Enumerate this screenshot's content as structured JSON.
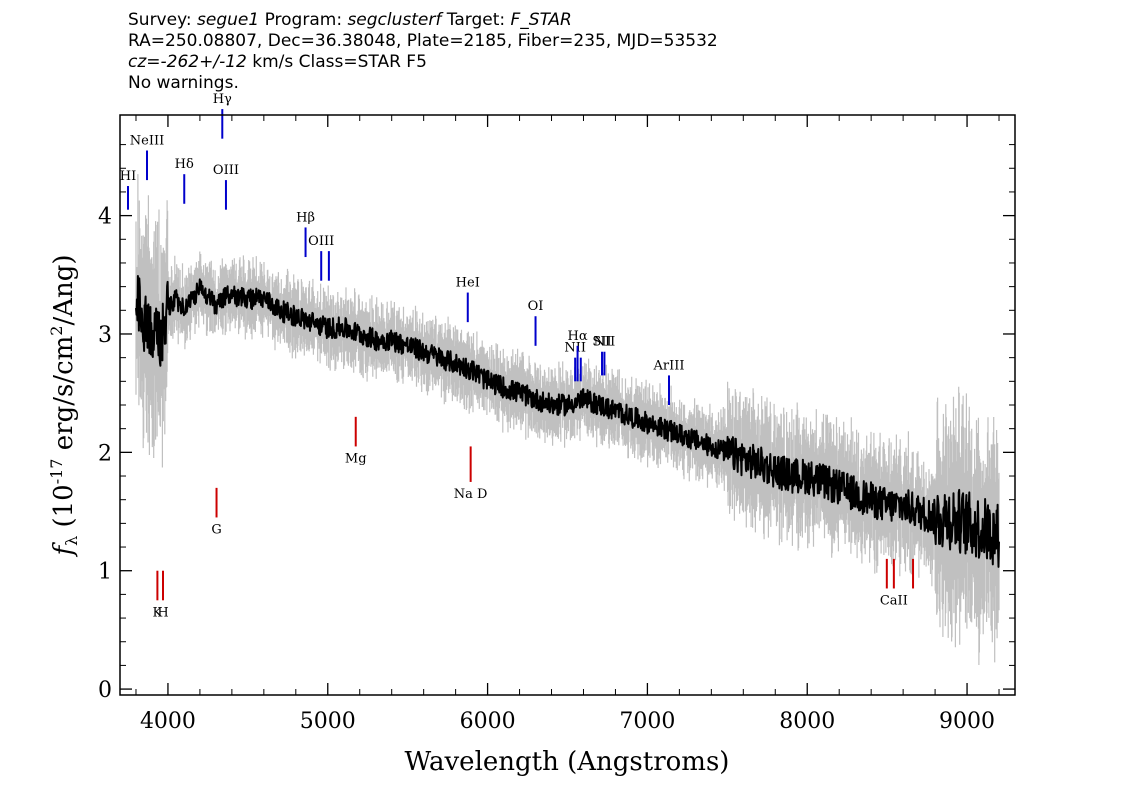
{
  "header": {
    "line1": {
      "survey_label": "Survey: ",
      "survey": "segue1",
      "program_label": " Program: ",
      "program": "segclusterf",
      "target_label": " Target: ",
      "target": "F_STAR"
    },
    "line2": "RA=250.08807, Dec=36.38048, Plate=2185, Fiber=235, MJD=53532",
    "line3": {
      "cz": "cz=-262+/-12",
      "rest": " km/s Class=STAR F5"
    },
    "line4": "No warnings."
  },
  "chart_data": {
    "type": "line",
    "xlabel": "Wavelength (Angstroms)",
    "ylabel_parts": [
      "f",
      "λ",
      " (10",
      "-17",
      " erg/s/cm",
      "2",
      "/Ang)"
    ],
    "xlim": [
      3700,
      9300
    ],
    "ylim": [
      -0.05,
      4.85
    ],
    "x_ticks": [
      4000,
      5000,
      6000,
      7000,
      8000,
      9000
    ],
    "y_ticks": [
      0,
      1,
      2,
      3,
      4
    ],
    "colors": {
      "spectrum": "#000000",
      "error_band": "#c0c0c0",
      "emission": "#0000cc",
      "absorption": "#cc0000"
    },
    "series": [
      {
        "role": "flux",
        "x": [
          3800,
          3850,
          3900,
          3950,
          4000,
          4050,
          4100,
          4150,
          4200,
          4250,
          4300,
          4350,
          4400,
          4450,
          4500,
          4600,
          4700,
          4800,
          4900,
          5000,
          5100,
          5200,
          5300,
          5400,
          5500,
          5600,
          5700,
          5800,
          5900,
          6000,
          6100,
          6200,
          6300,
          6400,
          6500,
          6600,
          6700,
          6800,
          6900,
          7000,
          7100,
          7200,
          7300,
          7400,
          7500,
          7600,
          7700,
          7800,
          7900,
          8000,
          8100,
          8200,
          8300,
          8400,
          8500,
          8600,
          8700,
          8800,
          8900,
          9000,
          9100,
          9200
        ],
        "y": [
          3.3,
          3.1,
          3.0,
          2.9,
          3.2,
          3.3,
          3.2,
          3.3,
          3.4,
          3.3,
          3.25,
          3.3,
          3.35,
          3.3,
          3.3,
          3.3,
          3.2,
          3.15,
          3.1,
          3.05,
          3.05,
          3.0,
          2.95,
          2.95,
          2.9,
          2.85,
          2.8,
          2.75,
          2.7,
          2.6,
          2.55,
          2.5,
          2.45,
          2.4,
          2.4,
          2.45,
          2.4,
          2.35,
          2.3,
          2.25,
          2.2,
          2.15,
          2.1,
          2.05,
          2.0,
          1.95,
          1.9,
          1.85,
          1.8,
          1.8,
          1.75,
          1.7,
          1.65,
          1.6,
          1.55,
          1.55,
          1.5,
          1.45,
          1.45,
          1.4,
          1.35,
          1.3
        ]
      }
    ],
    "spectral_features": [
      {
        "x": 3750,
        "y1": 4.05,
        "y2": 4.25,
        "label": "HI",
        "kind": "emission"
      },
      {
        "x": 3869,
        "y1": 4.3,
        "y2": 4.55,
        "label": "NeIII",
        "kind": "emission"
      },
      {
        "x": 4102,
        "y1": 4.1,
        "y2": 4.35,
        "label": "Hδ",
        "kind": "emission"
      },
      {
        "x": 4340,
        "y1": 4.65,
        "y2": 4.9,
        "label": "Hγ",
        "kind": "emission"
      },
      {
        "x": 4363,
        "y1": 4.05,
        "y2": 4.3,
        "label": "OIII",
        "kind": "emission"
      },
      {
        "x": 4861,
        "y1": 3.65,
        "y2": 3.9,
        "label": "Hβ",
        "kind": "emission"
      },
      {
        "x": 4959,
        "y1": 3.45,
        "y2": 3.7,
        "label": "OIII",
        "kind": "emission"
      },
      {
        "x": 5007,
        "y1": 3.45,
        "y2": 3.7,
        "label": "",
        "kind": "emission"
      },
      {
        "x": 5876,
        "y1": 3.1,
        "y2": 3.35,
        "label": "HeI",
        "kind": "emission"
      },
      {
        "x": 6300,
        "y1": 2.9,
        "y2": 3.15,
        "label": "OI",
        "kind": "emission"
      },
      {
        "x": 6548,
        "y1": 2.6,
        "y2": 2.8,
        "label": "NII",
        "kind": "emission"
      },
      {
        "x": 6563,
        "y1": 2.6,
        "y2": 2.9,
        "label": "Hα",
        "kind": "emission"
      },
      {
        "x": 6583,
        "y1": 2.6,
        "y2": 2.8,
        "label": "",
        "kind": "emission"
      },
      {
        "x": 6716,
        "y1": 2.65,
        "y2": 2.85,
        "label": "SII",
        "kind": "emission"
      },
      {
        "x": 6731,
        "y1": 2.65,
        "y2": 2.85,
        "label": "NII",
        "kind": "emission"
      },
      {
        "x": 7135,
        "y1": 2.4,
        "y2": 2.65,
        "label": "ArIII",
        "kind": "emission"
      },
      {
        "x": 3934,
        "y1": 0.75,
        "y2": 1.0,
        "label": "K",
        "kind": "absorption"
      },
      {
        "x": 3969,
        "y1": 0.75,
        "y2": 1.0,
        "label": "H",
        "kind": "absorption"
      },
      {
        "x": 4304,
        "y1": 1.45,
        "y2": 1.7,
        "label": "G",
        "kind": "absorption"
      },
      {
        "x": 5175,
        "y1": 2.05,
        "y2": 2.3,
        "label": "Mg",
        "kind": "absorption"
      },
      {
        "x": 5894,
        "y1": 1.75,
        "y2": 2.05,
        "label": "Na D",
        "kind": "absorption"
      },
      {
        "x": 8498,
        "y1": 0.85,
        "y2": 1.1,
        "label": "",
        "kind": "absorption"
      },
      {
        "x": 8542,
        "y1": 0.85,
        "y2": 1.1,
        "label": "CaII",
        "kind": "absorption"
      },
      {
        "x": 8662,
        "y1": 0.85,
        "y2": 1.1,
        "label": "",
        "kind": "absorption"
      }
    ]
  }
}
